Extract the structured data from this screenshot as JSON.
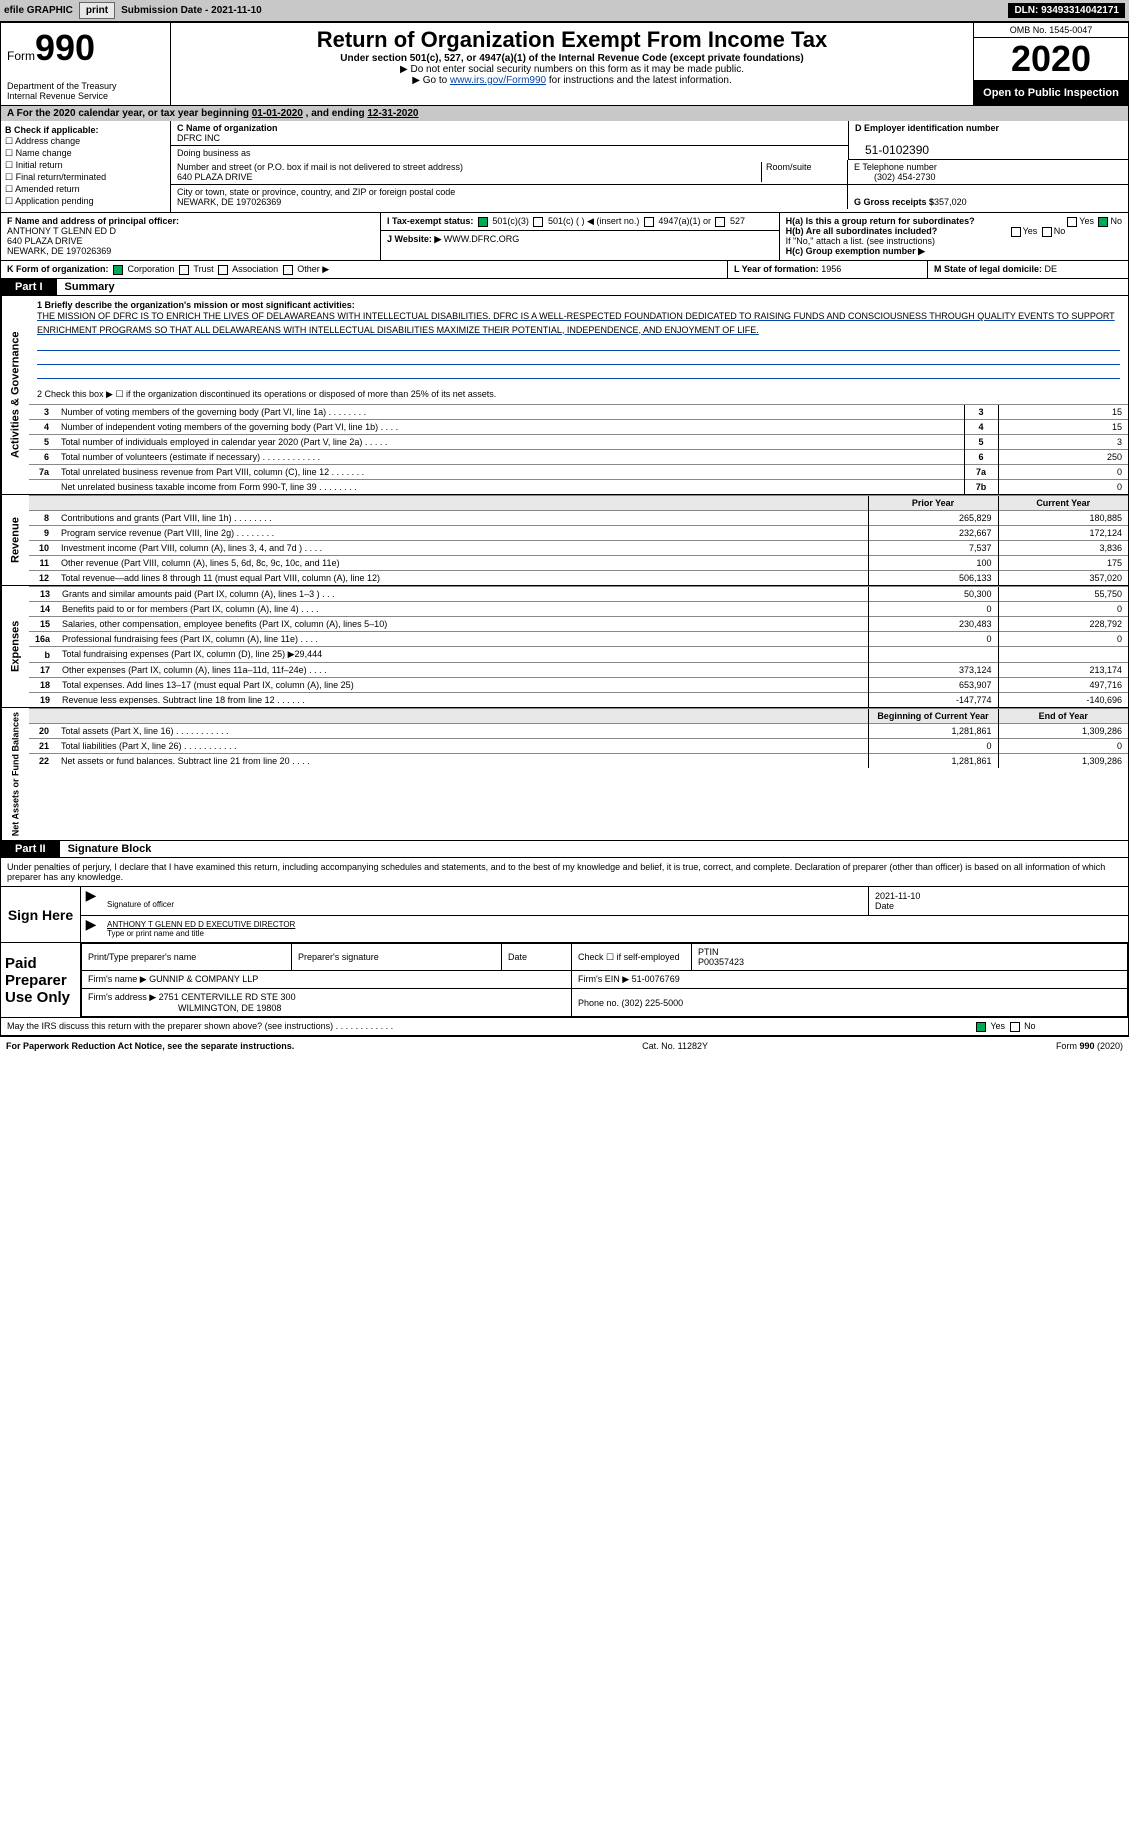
{
  "topbar": {
    "efile": "efile GRAPHIC",
    "print": "print",
    "submission_label": "Submission Date - ",
    "submission_date": "2021-11-10",
    "dln_label": "DLN: ",
    "dln": "93493314042171"
  },
  "header": {
    "form_prefix": "Form",
    "form_number": "990",
    "title": "Return of Organization Exempt From Income Tax",
    "subtitle": "Under section 501(c), 527, or 4947(a)(1) of the Internal Revenue Code (except private foundations)",
    "note1": "▶ Do not enter social security numbers on this form as it may be made public.",
    "note2_pre": "▶ Go to ",
    "note2_link": "www.irs.gov/Form990",
    "note2_post": " for instructions and the latest information.",
    "dept": "Department of the Treasury\nInternal Revenue Service",
    "omb": "OMB No. 1545-0047",
    "year": "2020",
    "open": "Open to Public Inspection"
  },
  "period": {
    "text_a": "A For the 2020 calendar year, or tax year beginning ",
    "begin": "01-01-2020",
    "text_b": " , and ending ",
    "end": "12-31-2020"
  },
  "sectionB": {
    "label": "B Check if applicable:",
    "items": [
      "Address change",
      "Name change",
      "Initial return",
      "Final return/terminated",
      "Amended return",
      "Application pending"
    ]
  },
  "sectionC": {
    "label": "C Name of organization",
    "name": "DFRC INC",
    "dba_label": "Doing business as",
    "street_label": "Number and street (or P.O. box if mail is not delivered to street address)",
    "room_label": "Room/suite",
    "street": "640 PLAZA DRIVE",
    "city_label": "City or town, state or province, country, and ZIP or foreign postal code",
    "city": "NEWARK, DE  197026369"
  },
  "sectionD": {
    "label": "D Employer identification number",
    "value": "51-0102390"
  },
  "sectionE": {
    "label": "E Telephone number",
    "value": "(302) 454-2730"
  },
  "sectionG": {
    "label": "G Gross receipts $ ",
    "value": "357,020"
  },
  "sectionF": {
    "label": "F Name and address of principal officer:",
    "name": "ANTHONY T GLENN ED D",
    "addr1": "640 PLAZA DRIVE",
    "addr2": "NEWARK, DE  197026369"
  },
  "sectionH": {
    "a": "H(a)  Is this a group return for subordinates?",
    "b": "H(b)  Are all subordinates included?",
    "b_note": "If \"No,\" attach a list. (see instructions)",
    "c": "H(c)  Group exemption number ▶",
    "yes": "Yes",
    "no": "No"
  },
  "sectionI": {
    "label": "I  Tax-exempt status:",
    "opts": [
      "501(c)(3)",
      "501(c) (  ) ◀ (insert no.)",
      "4947(a)(1) or",
      "527"
    ]
  },
  "sectionJ": {
    "label": "J  Website: ▶",
    "value": "WWW.DFRC.ORG"
  },
  "sectionK": {
    "label": "K Form of organization:",
    "opts": [
      "Corporation",
      "Trust",
      "Association",
      "Other ▶"
    ]
  },
  "sectionL": {
    "label": "L Year of formation: ",
    "value": "1956"
  },
  "sectionM": {
    "label": "M State of legal domicile: ",
    "value": "DE"
  },
  "part1": {
    "tag": "Part I",
    "title": "Summary",
    "line1_label": "1  Briefly describe the organization's mission or most significant activities:",
    "mission": "THE MISSION OF DFRC IS TO ENRICH THE LIVES OF DELAWAREANS WITH INTELLECTUAL DISABILITIES. DFRC IS A WELL-RESPECTED FOUNDATION DEDICATED TO RAISING FUNDS AND CONSCIOUSNESS THROUGH QUALITY EVENTS TO SUPPORT ENRICHMENT PROGRAMS SO THAT ALL DELAWAREANS WITH INTELLECTUAL DISABILITIES MAXIMIZE THEIR POTENTIAL, INDEPENDENCE, AND ENJOYMENT OF LIFE.",
    "line2": "2  Check this box ▶ ☐ if the organization discontinued its operations or disposed of more than 25% of its net assets.",
    "gov_tab": "Activities & Governance",
    "rev_tab": "Revenue",
    "exp_tab": "Expenses",
    "net_tab": "Net Assets or Fund Balances",
    "cols": {
      "prior": "Prior Year",
      "current": "Current Year",
      "boy": "Beginning of Current Year",
      "eoy": "End of Year"
    },
    "gov_lines": [
      {
        "n": "3",
        "t": "Number of voting members of the governing body (Part VI, line 1a)  .  .  .  .  .  .  .  .",
        "b": "3",
        "v": "15"
      },
      {
        "n": "4",
        "t": "Number of independent voting members of the governing body (Part VI, line 1b)  .  .  .  .",
        "b": "4",
        "v": "15"
      },
      {
        "n": "5",
        "t": "Total number of individuals employed in calendar year 2020 (Part V, line 2a)  .  .  .  .  .",
        "b": "5",
        "v": "3"
      },
      {
        "n": "6",
        "t": "Total number of volunteers (estimate if necessary)  .  .  .  .  .  .  .  .  .  .  .  .",
        "b": "6",
        "v": "250"
      },
      {
        "n": "7a",
        "t": "Total unrelated business revenue from Part VIII, column (C), line 12  .  .  .  .  .  .  .",
        "b": "7a",
        "v": "0"
      },
      {
        "n": "",
        "t": "Net unrelated business taxable income from Form 990-T, line 39  .  .  .  .  .  .  .  .",
        "b": "7b",
        "v": "0"
      }
    ],
    "rev_lines": [
      {
        "n": "8",
        "t": "Contributions and grants (Part VIII, line 1h)  .  .  .  .  .  .  .  .",
        "p": "265,829",
        "c": "180,885"
      },
      {
        "n": "9",
        "t": "Program service revenue (Part VIII, line 2g)  .  .  .  .  .  .  .  .",
        "p": "232,667",
        "c": "172,124"
      },
      {
        "n": "10",
        "t": "Investment income (Part VIII, column (A), lines 3, 4, and 7d )  .  .  .  .",
        "p": "7,537",
        "c": "3,836"
      },
      {
        "n": "11",
        "t": "Other revenue (Part VIII, column (A), lines 5, 6d, 8c, 9c, 10c, and 11e)",
        "p": "100",
        "c": "175"
      },
      {
        "n": "12",
        "t": "Total revenue—add lines 8 through 11 (must equal Part VIII, column (A), line 12)",
        "p": "506,133",
        "c": "357,020"
      }
    ],
    "exp_lines": [
      {
        "n": "13",
        "t": "Grants and similar amounts paid (Part IX, column (A), lines 1–3 )  .  .  .",
        "p": "50,300",
        "c": "55,750"
      },
      {
        "n": "14",
        "t": "Benefits paid to or for members (Part IX, column (A), line 4)  .  .  .  .",
        "p": "0",
        "c": "0"
      },
      {
        "n": "15",
        "t": "Salaries, other compensation, employee benefits (Part IX, column (A), lines 5–10)",
        "p": "230,483",
        "c": "228,792"
      },
      {
        "n": "16a",
        "t": "Professional fundraising fees (Part IX, column (A), line 11e)  .  .  .  .",
        "p": "0",
        "c": "0"
      },
      {
        "n": "b",
        "t": "Total fundraising expenses (Part IX, column (D), line 25) ▶29,444",
        "p": "",
        "c": ""
      },
      {
        "n": "17",
        "t": "Other expenses (Part IX, column (A), lines 11a–11d, 11f–24e)  .  .  .  .",
        "p": "373,124",
        "c": "213,174"
      },
      {
        "n": "18",
        "t": "Total expenses. Add lines 13–17 (must equal Part IX, column (A), line 25)",
        "p": "653,907",
        "c": "497,716"
      },
      {
        "n": "19",
        "t": "Revenue less expenses. Subtract line 18 from line 12  .  .  .  .  .  .",
        "p": "-147,774",
        "c": "-140,696"
      }
    ],
    "net_lines": [
      {
        "n": "20",
        "t": "Total assets (Part X, line 16)  .  .  .  .  .  .  .  .  .  .  .",
        "p": "1,281,861",
        "c": "1,309,286"
      },
      {
        "n": "21",
        "t": "Total liabilities (Part X, line 26)  .  .  .  .  .  .  .  .  .  .  .",
        "p": "0",
        "c": "0"
      },
      {
        "n": "22",
        "t": "Net assets or fund balances. Subtract line 21 from line 20  .  .  .  .",
        "p": "1,281,861",
        "c": "1,309,286"
      }
    ]
  },
  "part2": {
    "tag": "Part II",
    "title": "Signature Block",
    "intro": "Under penalties of perjury, I declare that I have examined this return, including accompanying schedules and statements, and to the best of my knowledge and belief, it is true, correct, and complete. Declaration of preparer (other than officer) is based on all information of which preparer has any knowledge.",
    "sign_here": "Sign Here",
    "sig_officer": "Signature of officer",
    "sig_date": "2021-11-10",
    "date_label": "Date",
    "officer_name": "ANTHONY T GLENN ED D  EXECUTIVE DIRECTOR",
    "officer_label": "Type or print name and title",
    "paid": "Paid Preparer Use Only",
    "prep_name_label": "Print/Type preparer's name",
    "prep_sig_label": "Preparer's signature",
    "prep_date_label": "Date",
    "self_emp": "Check ☐ if self-employed",
    "ptin_label": "PTIN",
    "ptin": "P00357423",
    "firm_name_label": "Firm's name    ▶",
    "firm_name": "GUNNIP & COMPANY LLP",
    "firm_ein_label": "Firm's EIN ▶",
    "firm_ein": "51-0076769",
    "firm_addr_label": "Firm's address ▶",
    "firm_addr1": "2751 CENTERVILLE RD STE 300",
    "firm_addr2": "WILMINGTON, DE  19808",
    "firm_phone_label": "Phone no. ",
    "firm_phone": "(302) 225-5000",
    "discuss": "May the IRS discuss this return with the preparer shown above? (see instructions)  .  .  .  .  .  .  .  .  .  .  .  .",
    "yes": "Yes",
    "no": "No"
  },
  "footer": {
    "pra": "For Paperwork Reduction Act Notice, see the separate instructions.",
    "cat": "Cat. No. 11282Y",
    "form": "Form 990 (2020)"
  }
}
